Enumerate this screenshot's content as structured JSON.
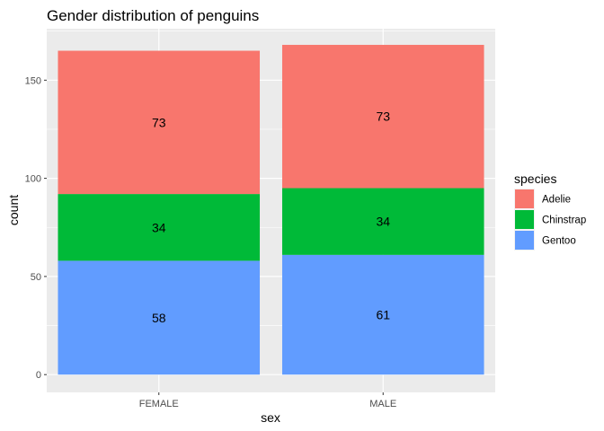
{
  "chart_data": {
    "type": "bar",
    "stacked": true,
    "title": "Gender distribution of penguins",
    "xlabel": "sex",
    "ylabel": "count",
    "categories": [
      "FEMALE",
      "MALE"
    ],
    "ylim": [
      0,
      172
    ],
    "yticks": [
      0,
      50,
      100,
      150
    ],
    "series": [
      {
        "name": "Adelie",
        "color": "#F8766D",
        "values": [
          73,
          73
        ]
      },
      {
        "name": "Chinstrap",
        "color": "#00BA38",
        "values": [
          34,
          34
        ]
      },
      {
        "name": "Gentoo",
        "color": "#619CFF",
        "values": [
          58,
          61
        ]
      }
    ],
    "legend": {
      "title": "species",
      "position": "right"
    },
    "panel_background": "#EBEBEB",
    "grid_color": "#FFFFFF"
  }
}
